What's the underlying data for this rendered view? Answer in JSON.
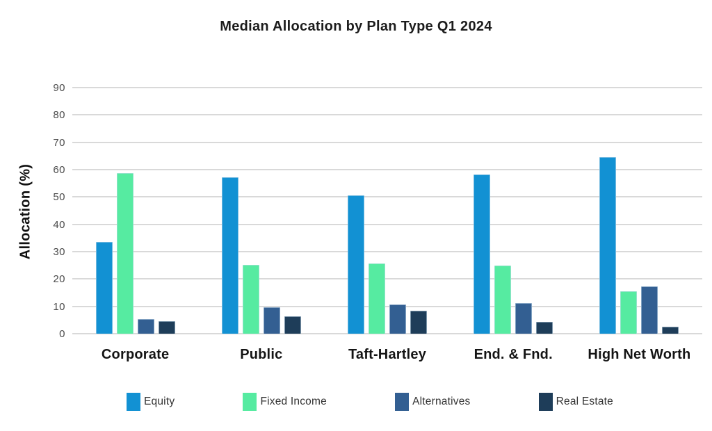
{
  "chart_data": {
    "type": "bar",
    "title": "Median Allocation by Plan Type Q1 2024",
    "xlabel": "",
    "ylabel": "Allocation (%)",
    "ylim": [
      0,
      90
    ],
    "ytick_step": 10,
    "grid": true,
    "legend_position": "bottom",
    "categories": [
      "Corporate",
      "Public",
      "Taft-Hartley",
      "End. & Fnd.",
      "High Net Worth"
    ],
    "series": [
      {
        "name": "Equity",
        "color": "#1291d3",
        "values": [
          33.5,
          57.2,
          50.7,
          58.3,
          64.5
        ]
      },
      {
        "name": "Fixed Income",
        "color": "#56eba1",
        "values": [
          58.8,
          25.3,
          25.8,
          25.0,
          15.5
        ]
      },
      {
        "name": "Alternatives",
        "color": "#335f92",
        "values": [
          5.4,
          9.6,
          10.7,
          11.3,
          17.4
        ]
      },
      {
        "name": "Real Estate",
        "color": "#1e3d59",
        "values": [
          4.5,
          6.4,
          8.3,
          4.4,
          2.5
        ]
      }
    ]
  },
  "colors": {
    "gridline": "#d9d9d9",
    "title_text": "#1c1c1c",
    "tick_text": "#4b4b4b"
  }
}
